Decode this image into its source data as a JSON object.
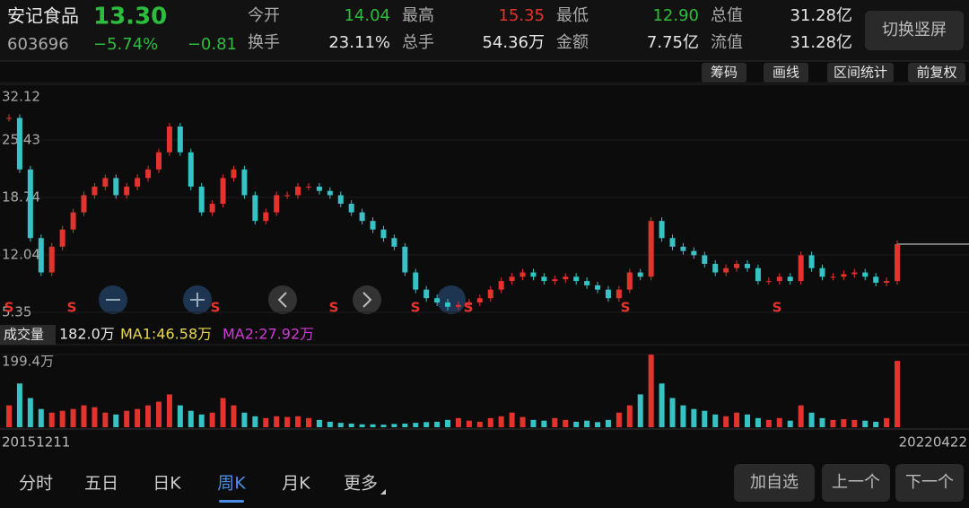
{
  "header": {
    "name": "安记食品",
    "price": "13.30",
    "code": "603696",
    "change_pct": "−5.74%",
    "change": "−0.81"
  },
  "stats": [
    {
      "label": "今开",
      "value": "14.04",
      "color": "#2dbd3c"
    },
    {
      "label": "最高",
      "value": "15.35",
      "color": "#e4332c"
    },
    {
      "label": "最低",
      "value": "12.90",
      "color": "#2dbd3c"
    },
    {
      "label": "总值",
      "value": "31.28亿",
      "color": "#e6e6e6"
    },
    {
      "label": "换手",
      "value": "23.11%",
      "color": "#e6e6e6"
    },
    {
      "label": "总手",
      "value": "54.36万",
      "color": "#e6e6e6"
    },
    {
      "label": "金额",
      "value": "7.75亿",
      "color": "#e6e6e6"
    },
    {
      "label": "流值",
      "value": "31.28亿",
      "color": "#e6e6e6"
    }
  ],
  "switch_button": "切换竖屏",
  "tools": [
    "筹码",
    "画线",
    "区间统计",
    "前复权"
  ],
  "chart_data": {
    "type": "candlestick",
    "up_color": "#e4332c",
    "down_color": "#36c3c6",
    "ylim": [
      5.35,
      32.12
    ],
    "yticks": [
      32.12,
      25.43,
      18.74,
      12.04,
      5.35
    ],
    "values": [
      28,
      22,
      14,
      10,
      13,
      15,
      17,
      19,
      20,
      21,
      19,
      20,
      21,
      22,
      24,
      27,
      24,
      20,
      17,
      18,
      21,
      22,
      19,
      16,
      17,
      19,
      19,
      20,
      20,
      19.5,
      19,
      18,
      17,
      16,
      15,
      14,
      13,
      10,
      8,
      7,
      6.5,
      6,
      6.2,
      6.5,
      7,
      8,
      9,
      9.5,
      10,
      9.5,
      9,
      9.2,
      9.5,
      9,
      8.5,
      8,
      7,
      8,
      10,
      9.5,
      16,
      14,
      13,
      12.5,
      12,
      11,
      10,
      10.5,
      11,
      10.5,
      9,
      9,
      9.5,
      9,
      12,
      10.5,
      9.5,
      9.5,
      9.8,
      10,
      9.5,
      8.8,
      9,
      13.3
    ],
    "signals": [
      "S",
      "S",
      "S",
      "S",
      "S",
      "S",
      "S",
      "S"
    ]
  },
  "volume": {
    "type": "bar",
    "label": "成交量",
    "current": "182.0万",
    "ma1": "MA1:46.58万",
    "ma2": "MA2:27.92万",
    "ylim": [
      0,
      199.4
    ],
    "yticks": [
      {
        "value": 199.4,
        "label": "199.4万"
      }
    ],
    "values": [
      60,
      120,
      80,
      50,
      40,
      45,
      50,
      60,
      55,
      40,
      35,
      45,
      50,
      60,
      70,
      90,
      60,
      45,
      35,
      40,
      80,
      60,
      40,
      30,
      25,
      30,
      28,
      30,
      25,
      20,
      15,
      12,
      10,
      8,
      8,
      7,
      9,
      10,
      12,
      14,
      15,
      20,
      25,
      18,
      15,
      25,
      30,
      40,
      28,
      20,
      18,
      25,
      20,
      15,
      18,
      14,
      20,
      40,
      60,
      90,
      199,
      120,
      80,
      60,
      50,
      45,
      35,
      30,
      40,
      35,
      25,
      20,
      25,
      18,
      60,
      40,
      25,
      20,
      22,
      20,
      18,
      15,
      25,
      182
    ]
  },
  "dates": [
    "20151211",
    "20220422"
  ],
  "tabs": [
    "分时",
    "五日",
    "日K",
    "周K",
    "月K",
    "更多"
  ],
  "selected_tab": 3,
  "buttons": [
    "加自选",
    "上一个",
    "下一个"
  ]
}
